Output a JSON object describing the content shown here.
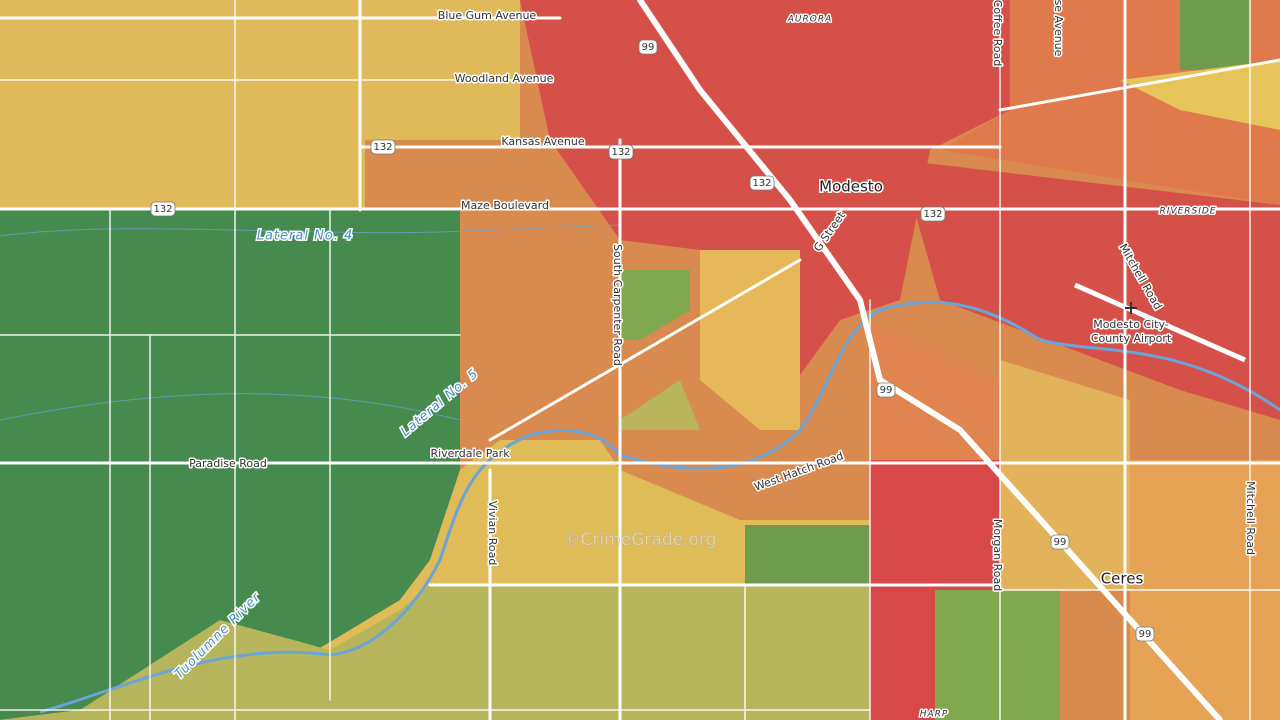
{
  "map": {
    "roads": [
      "Blue Gum Avenue",
      "Woodland Avenue",
      "Kansas Avenue",
      "Maze Boulevard",
      "Paradise Road",
      "South Carpenter Road",
      "Vivian Road",
      "West Hatch Road",
      "G Street",
      "Coffee Road",
      "Mitchell Road",
      "Mitchell Road",
      "Morgan Road",
      "RIVERSIDE",
      "AURORA",
      "HARP",
      "se Avenue"
    ],
    "water": [
      "Lateral No. 4",
      "Lateral No. 5",
      "Tuolumne River"
    ],
    "places": [
      "Modesto",
      "Ceres",
      "Riverdale Park",
      "Modesto City-",
      "County Airport"
    ],
    "shields": [
      "99",
      "99",
      "99",
      "99",
      "132",
      "132",
      "132",
      "132",
      "132"
    ],
    "watermark": "©CrimeGrade.org"
  }
}
